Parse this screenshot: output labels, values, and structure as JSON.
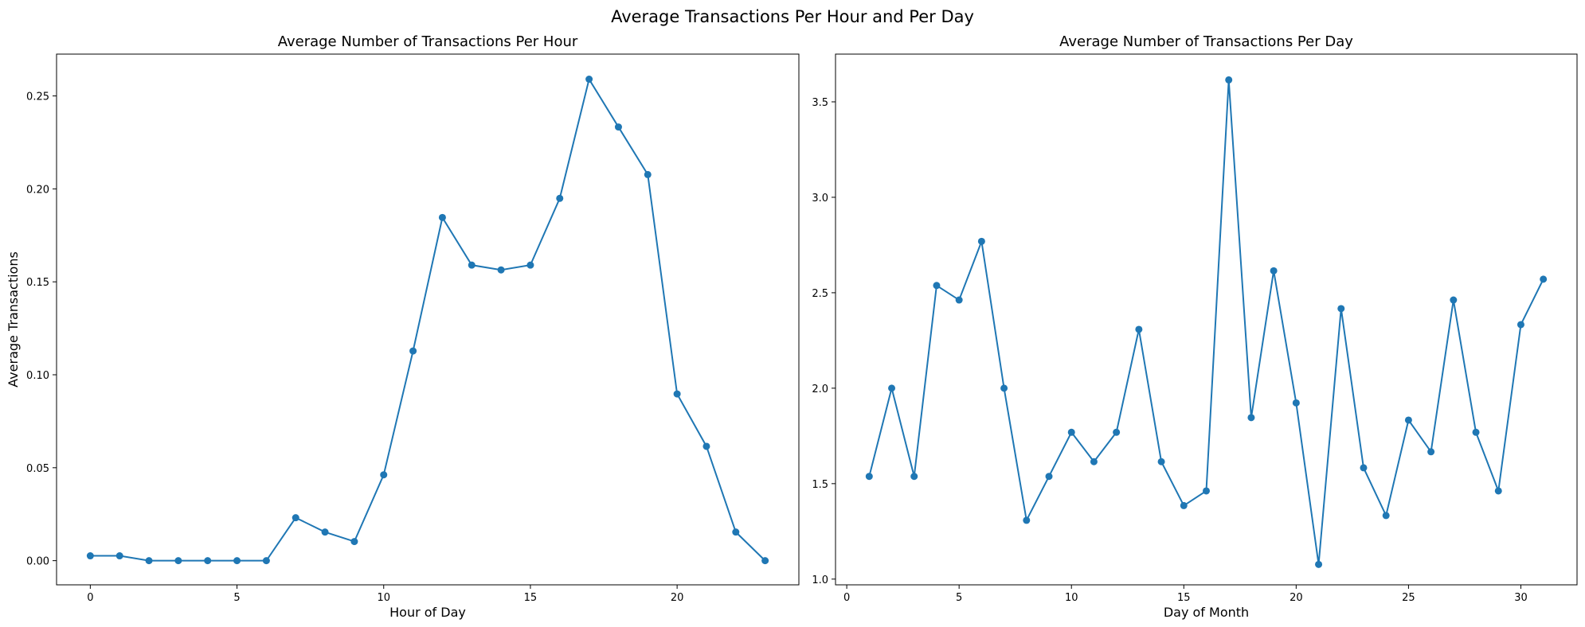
{
  "suptitle": "Average Transactions Per Hour and Per Day",
  "chart_data": [
    {
      "type": "line",
      "title": "Average Number of Transactions Per Hour",
      "xlabel": "Hour of Day",
      "ylabel": "Average Transactions",
      "xlim": [
        -1.15,
        24.15
      ],
      "ylim": [
        -0.013,
        0.2725
      ],
      "xticks": [
        0,
        5,
        10,
        15,
        20
      ],
      "xtick_labels": [
        "0",
        "5",
        "10",
        "15",
        "20"
      ],
      "yticks": [
        0.0,
        0.05,
        0.1,
        0.15,
        0.2,
        0.25
      ],
      "ytick_labels": [
        "0.00",
        "0.05",
        "0.10",
        "0.15",
        "0.20",
        "0.25"
      ],
      "grid": false,
      "color": "#1f77b4",
      "x": [
        0,
        1,
        2,
        3,
        4,
        5,
        6,
        7,
        8,
        9,
        10,
        11,
        12,
        13,
        14,
        15,
        16,
        17,
        18,
        19,
        20,
        21,
        22,
        23
      ],
      "y": [
        0.0026,
        0.0026,
        0.0,
        0.0,
        0.0,
        0.0,
        0.0,
        0.0231,
        0.0154,
        0.0103,
        0.0462,
        0.1128,
        0.1846,
        0.159,
        0.1564,
        0.159,
        0.1949,
        0.259,
        0.2333,
        0.2077,
        0.0897,
        0.0615,
        0.0154,
        0.0
      ]
    },
    {
      "type": "line",
      "title": "Average Number of Transactions Per Day",
      "xlabel": "Day of Month",
      "ylabel": "",
      "xlim": [
        -0.5,
        32.5
      ],
      "ylim": [
        0.97,
        3.75
      ],
      "xticks": [
        0,
        5,
        10,
        15,
        20,
        25,
        30
      ],
      "xtick_labels": [
        "0",
        "5",
        "10",
        "15",
        "20",
        "25",
        "30"
      ],
      "yticks": [
        1.0,
        1.5,
        2.0,
        2.5,
        3.0,
        3.5
      ],
      "ytick_labels": [
        "1.0",
        "1.5",
        "2.0",
        "2.5",
        "3.0",
        "3.5"
      ],
      "grid": false,
      "color": "#1f77b4",
      "x": [
        1,
        2,
        3,
        4,
        5,
        6,
        7,
        8,
        9,
        10,
        11,
        12,
        13,
        14,
        15,
        16,
        17,
        18,
        19,
        20,
        21,
        22,
        23,
        24,
        25,
        26,
        27,
        28,
        29,
        30,
        31
      ],
      "y": [
        1.538,
        2.0,
        1.538,
        2.538,
        2.462,
        2.769,
        2.0,
        1.308,
        1.538,
        1.769,
        1.615,
        1.769,
        2.308,
        1.615,
        1.385,
        1.462,
        3.615,
        1.846,
        2.615,
        1.923,
        1.077,
        2.417,
        1.583,
        1.333,
        1.833,
        1.667,
        2.462,
        1.769,
        1.462,
        2.333,
        2.571
      ]
    }
  ]
}
